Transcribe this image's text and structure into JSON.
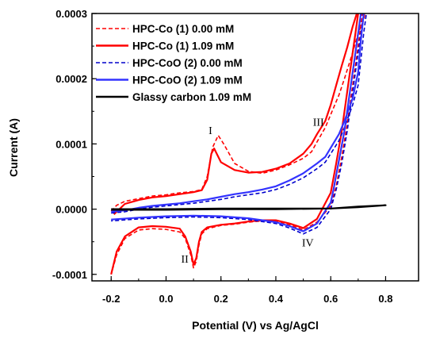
{
  "chart_data": {
    "type": "line",
    "title": "",
    "xlabel": "Potential (V) vs Ag/AgCl",
    "ylabel": "Current (A)",
    "xlim": [
      -0.27,
      0.92
    ],
    "ylim": [
      -0.00011,
      0.0003
    ],
    "xticks": [
      -0.2,
      0.0,
      0.2,
      0.4,
      0.6,
      0.8
    ],
    "xtick_labels": [
      "-0.2",
      "0.0",
      "0.2",
      "0.4",
      "0.6",
      "0.8"
    ],
    "yticks": [
      -0.0001,
      0.0,
      0.0001,
      0.0002,
      0.0003
    ],
    "ytick_labels": [
      "-0.0001",
      "0.0000",
      "0.0001",
      "0.0002",
      "0.0003"
    ],
    "grid": false,
    "legend_position": "top-left",
    "series": [
      {
        "name": "HPC-Co (1)  0.00 mM",
        "color": "#ff0000",
        "dash": "dashed",
        "x": [
          -0.2,
          -0.18,
          -0.15,
          -0.1,
          -0.05,
          0.0,
          0.05,
          0.1,
          0.13,
          0.15,
          0.17,
          0.19,
          0.21,
          0.25,
          0.3,
          0.35,
          0.4,
          0.45,
          0.5,
          0.53,
          0.55,
          0.58,
          0.6,
          0.63,
          0.65,
          0.68,
          0.7,
          0.72,
          0.725,
          0.715,
          0.7,
          0.68,
          0.66,
          0.64,
          0.62,
          0.6,
          0.55,
          0.5,
          0.45,
          0.4,
          0.35,
          0.3,
          0.25,
          0.2,
          0.15,
          0.13,
          0.12,
          0.11,
          0.1,
          0.09,
          0.07,
          0.05,
          0.0,
          -0.05,
          -0.1,
          -0.15,
          -0.18,
          -0.2
        ],
        "y": [
          -3e-06,
          6e-06,
          1.2e-05,
          1.6e-05,
          2e-05,
          2.2e-05,
          2.5e-05,
          2.7e-05,
          3e-05,
          5e-05,
          9.5e-05,
          0.000113,
          0.0001,
          7e-05,
          5.8e-05,
          5.5e-05,
          6e-05,
          6.8e-05,
          7.8e-05,
          8.8e-05,
          0.000103,
          0.000125,
          0.000145,
          0.000175,
          0.0002,
          0.00024,
          0.00027,
          0.00029,
          0.0003,
          0.0003,
          0.00025,
          0.00019,
          0.00013,
          8e-05,
          3.5e-05,
          5e-06,
          -2e-05,
          -3.2e-05,
          -2.4e-05,
          -1.8e-05,
          -1.8e-05,
          -2e-05,
          -2.3e-05,
          -2.5e-05,
          -3e-05,
          -3.8e-05,
          -5.5e-05,
          -8e-05,
          -9e-05,
          -7e-05,
          -4.5e-05,
          -3.5e-05,
          -3.1e-05,
          -3e-05,
          -3.2e-05,
          -4.5e-05,
          -7e-05,
          -0.0001
        ]
      },
      {
        "name": "HPC-Co (1)  1.09 mM",
        "color": "#ff0000",
        "dash": "solid",
        "x": [
          -0.19,
          -0.15,
          -0.1,
          -0.05,
          0.0,
          0.05,
          0.1,
          0.13,
          0.15,
          0.165,
          0.175,
          0.2,
          0.25,
          0.3,
          0.35,
          0.4,
          0.45,
          0.5,
          0.53,
          0.55,
          0.58,
          0.6,
          0.62,
          0.64,
          0.66,
          0.68,
          0.695,
          0.7,
          0.69,
          0.68,
          0.66,
          0.64,
          0.62,
          0.6,
          0.55,
          0.5,
          0.45,
          0.4,
          0.35,
          0.3,
          0.25,
          0.2,
          0.15,
          0.13,
          0.12,
          0.11,
          0.1,
          0.09,
          0.07,
          0.05,
          0.0,
          -0.05,
          -0.1,
          -0.15,
          -0.18,
          -0.2
        ],
        "y": [
          -8e-06,
          8e-06,
          1.4e-05,
          1.8e-05,
          2e-05,
          2.3e-05,
          2.6e-05,
          2.9e-05,
          4.5e-05,
          8.5e-05,
          9.3e-05,
          7.2e-05,
          6e-05,
          5.6e-05,
          5.7e-05,
          6.2e-05,
          7e-05,
          8.5e-05,
          0.0001,
          0.000115,
          0.000135,
          0.00016,
          0.00019,
          0.00022,
          0.000248,
          0.00028,
          0.0003,
          0.0003,
          0.00027,
          0.00024,
          0.00018,
          0.00012,
          7e-05,
          2.5e-05,
          -1.5e-05,
          -2.9e-05,
          -2.2e-05,
          -1.7e-05,
          -1.7e-05,
          -1.9e-05,
          -2.2e-05,
          -2.4e-05,
          -2.8e-05,
          -3.5e-05,
          -5e-05,
          -7.5e-05,
          -8.5e-05,
          -6.5e-05,
          -4.2e-05,
          -3e-05,
          -2.7e-05,
          -2.6e-05,
          -2.8e-05,
          -4.2e-05,
          -6.5e-05,
          -0.0001
        ]
      },
      {
        "name": "HPC-CoO (2)  0.00 mM",
        "color": "#0000cc",
        "dash": "dashed",
        "x": [
          -0.2,
          -0.15,
          -0.1,
          -0.05,
          0.0,
          0.05,
          0.1,
          0.15,
          0.2,
          0.25,
          0.3,
          0.35,
          0.4,
          0.45,
          0.5,
          0.55,
          0.58,
          0.6,
          0.63,
          0.65,
          0.68,
          0.7,
          0.72,
          0.73,
          0.72,
          0.7,
          0.68,
          0.66,
          0.64,
          0.62,
          0.6,
          0.55,
          0.5,
          0.45,
          0.4,
          0.3,
          0.2,
          0.1,
          0.0,
          -0.1,
          -0.2
        ],
        "y": [
          -6e-06,
          -4e-06,
          0.0,
          3e-06,
          5e-06,
          7e-06,
          9e-06,
          1.2e-05,
          1.5e-05,
          1.9e-05,
          2.2e-05,
          2.5e-05,
          3e-05,
          3.8e-05,
          4.8e-05,
          6.2e-05,
          7.2e-05,
          8.5e-05,
          0.000105,
          0.000125,
          0.00016,
          0.00019,
          0.00027,
          0.0003,
          0.0003,
          0.00024,
          0.00018,
          0.00012,
          7e-05,
          3e-05,
          0.0,
          -2.8e-05,
          -3.8e-05,
          -2.9e-05,
          -2.2e-05,
          -1.6e-05,
          -1.3e-05,
          -1.2e-05,
          -1.3e-05,
          -1.5e-05,
          -1.8e-05
        ]
      },
      {
        "name": "HPC-CoO (2) 1.09 mM",
        "color": "#3333ff",
        "dash": "solid",
        "x": [
          -0.2,
          -0.15,
          -0.1,
          -0.05,
          0.0,
          0.05,
          0.1,
          0.15,
          0.2,
          0.25,
          0.3,
          0.35,
          0.4,
          0.45,
          0.5,
          0.55,
          0.58,
          0.6,
          0.63,
          0.65,
          0.68,
          0.7,
          0.71,
          0.72,
          0.71,
          0.69,
          0.67,
          0.65,
          0.63,
          0.61,
          0.6,
          0.55,
          0.5,
          0.45,
          0.4,
          0.3,
          0.2,
          0.1,
          0.0,
          -0.1,
          -0.2
        ],
        "y": [
          -4e-06,
          -2e-06,
          2e-06,
          5e-06,
          7e-06,
          9e-06,
          1.2e-05,
          1.5e-05,
          1.9e-05,
          2.3e-05,
          2.6e-05,
          3e-05,
          3.5e-05,
          4.4e-05,
          5.5e-05,
          7e-05,
          8e-05,
          9.4e-05,
          0.000115,
          0.000135,
          0.00017,
          0.00021,
          0.00026,
          0.0003,
          0.0003,
          0.00024,
          0.00018,
          0.00012,
          7.5e-05,
          3e-05,
          1e-05,
          -2.2e-05,
          -3.4e-05,
          -2.6e-05,
          -2e-05,
          -1.4e-05,
          -1.1e-05,
          -1e-05,
          -1.1e-05,
          -1.3e-05,
          -1.6e-05
        ]
      },
      {
        "name": "Glassy carbon 1.09 mM",
        "color": "#000000",
        "dash": "solid",
        "x": [
          -0.2,
          0.0,
          0.2,
          0.4,
          0.6,
          0.7,
          0.8,
          0.7,
          0.6,
          0.4,
          0.2,
          0.0,
          -0.2
        ],
        "y": [
          0.0,
          0.0,
          1e-06,
          1e-06,
          1e-06,
          3e-06,
          6e-06,
          4e-06,
          1e-06,
          0.0,
          0.0,
          -1e-06,
          -1e-06
        ]
      }
    ],
    "annotations": [
      {
        "text": "I",
        "x": 0.155,
        "y": 0.000115
      },
      {
        "text": "II",
        "x": 0.055,
        "y": -8.2e-05
      },
      {
        "text": "III",
        "x": 0.535,
        "y": 0.000128
      },
      {
        "text": "IV",
        "x": 0.495,
        "y": -5.7e-05
      }
    ]
  }
}
